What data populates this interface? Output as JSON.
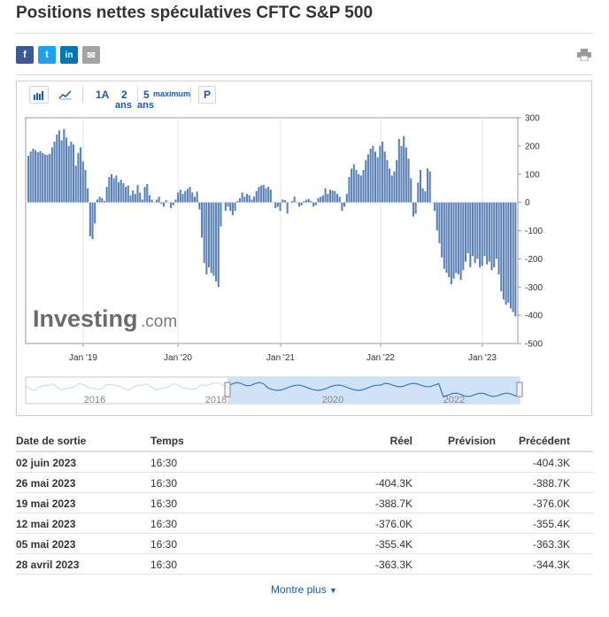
{
  "page": {
    "title": "Positions nettes spéculatives CFTC S&P 500"
  },
  "share": [
    {
      "icon": "facebook-icon",
      "glyph": "f",
      "color": "#3b5998"
    },
    {
      "icon": "twitter-icon",
      "glyph": "t",
      "color": "#1da1f2"
    },
    {
      "icon": "linkedin-icon",
      "glyph": "in",
      "color": "#0077b5"
    },
    {
      "icon": "email-icon",
      "glyph": "✉",
      "color": "#a3a3a3"
    }
  ],
  "toolbar": {
    "range_1a": "1A",
    "range_2": "2",
    "range_2_sub": "ans",
    "range_5": "5",
    "range_5_sub": "ans",
    "range_max": "maximum",
    "p_button": "P"
  },
  "chart_data": {
    "type": "bar",
    "y_ticks": [
      "300",
      "200",
      "100",
      "0",
      "-100",
      "-200",
      "-300",
      "-400",
      "-500"
    ],
    "ylim": [
      -500,
      300
    ],
    "x_ticks": [
      "Jan '19",
      "Jan '20",
      "Jan '21",
      "Jan '22",
      "Jan '23"
    ],
    "navigator_ticks": [
      "2016",
      "2018",
      "2020",
      "2022"
    ],
    "watermark": "Investing",
    "watermark_suffix": ".com",
    "values": [
      165,
      180,
      190,
      185,
      178,
      182,
      175,
      170,
      168,
      172,
      195,
      215,
      240,
      255,
      220,
      260,
      230,
      200,
      215,
      205,
      130,
      175,
      195,
      145,
      115,
      50,
      -120,
      -130,
      -75,
      10,
      20,
      15,
      5,
      55,
      90,
      100,
      85,
      95,
      72,
      80,
      68,
      55,
      60,
      25,
      42,
      30,
      62,
      35,
      10,
      55,
      65,
      25,
      10,
      0,
      10,
      20,
      -5,
      -15,
      8,
      0,
      -20,
      -10,
      10,
      35,
      45,
      30,
      40,
      48,
      55,
      35,
      20,
      38,
      -25,
      -125,
      -215,
      -255,
      -230,
      -250,
      -260,
      -280,
      -300,
      -85,
      0,
      -30,
      -15,
      -30,
      -45,
      -30,
      5,
      15,
      35,
      20,
      30,
      25,
      10,
      20,
      40,
      55,
      60,
      62,
      50,
      55,
      45,
      0,
      -20,
      -15,
      -30,
      10,
      8,
      -40,
      0,
      5,
      20,
      0,
      -15,
      -10,
      5,
      10,
      12,
      5,
      -15,
      -10,
      15,
      20,
      25,
      50,
      30,
      45,
      42,
      40,
      30,
      20,
      -30,
      -15,
      30,
      90,
      120,
      135,
      115,
      100,
      95,
      115,
      150,
      170,
      190,
      200,
      180,
      160,
      200,
      215,
      180,
      150,
      120,
      95,
      110,
      150,
      225,
      200,
      235,
      195,
      155,
      85,
      -50,
      -40,
      70,
      115,
      50,
      40,
      120,
      110,
      0,
      -30,
      -100,
      -145,
      -195,
      -235,
      -250,
      -265,
      -290,
      -270,
      -250,
      -255,
      -275,
      -240,
      -210,
      -180,
      -230,
      -190,
      -215,
      -200,
      -230,
      -225,
      -190,
      -220,
      -210,
      -240,
      -230,
      -200,
      -255,
      -315,
      -344.3,
      -363.3,
      -355.4,
      -376.0,
      -388.7,
      -404.3
    ]
  },
  "table": {
    "headers": {
      "date": "Date de sortie",
      "time": "Temps",
      "actual": "Réel",
      "forecast": "Prévision",
      "previous": "Précédent"
    },
    "rows": [
      {
        "date": "02 juin 2023",
        "time": "16:30",
        "actual": "",
        "forecast": "",
        "previous": "-404.3K"
      },
      {
        "date": "26 mai 2023",
        "time": "16:30",
        "actual": "-404.3K",
        "forecast": "",
        "previous": "-388.7K"
      },
      {
        "date": "19 mai 2023",
        "time": "16:30",
        "actual": "-388.7K",
        "forecast": "",
        "previous": "-376.0K"
      },
      {
        "date": "12 mai 2023",
        "time": "16:30",
        "actual": "-376.0K",
        "forecast": "",
        "previous": "-355.4K"
      },
      {
        "date": "05 mai 2023",
        "time": "16:30",
        "actual": "-355.4K",
        "forecast": "",
        "previous": "-363.3K"
      },
      {
        "date": "28 avril 2023",
        "time": "16:30",
        "actual": "-363.3K",
        "forecast": "",
        "previous": "-344.3K"
      }
    ],
    "more_label": "Montre plus"
  },
  "colors": {
    "bar": "#5b82b6",
    "accent": "#1a5aa6",
    "navigator_fill": "#cfe2f7"
  }
}
